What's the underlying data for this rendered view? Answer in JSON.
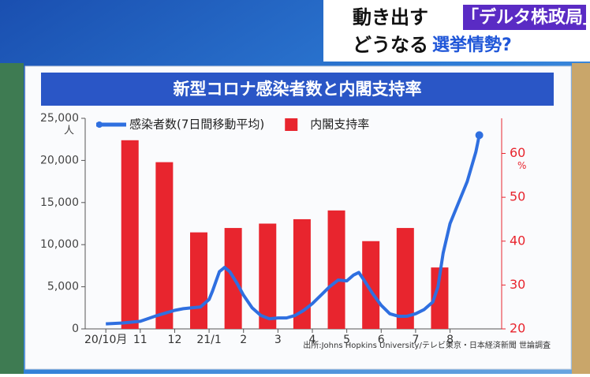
{
  "header": {
    "line1_plain": "動き出す",
    "line1_highlight": "「デルタ株政局」",
    "line2_plain": "どうなる",
    "line2_highlight": "選挙情勢?"
  },
  "chart_data": {
    "type": "bar-line",
    "title": "新型コロナ感染者数と内閣支持率",
    "y_unit": "人",
    "y2_unit": "%",
    "xlim": [
      -0.6,
      11.5
    ],
    "xticks": [
      {
        "value": 0,
        "label": "20/10月"
      },
      {
        "value": 1,
        "label": "11"
      },
      {
        "value": 2,
        "label": "12"
      },
      {
        "value": 3,
        "label": "21/1"
      },
      {
        "value": 4,
        "label": "2"
      },
      {
        "value": 5,
        "label": "3"
      },
      {
        "value": 6,
        "label": "4"
      },
      {
        "value": 7,
        "label": "5"
      },
      {
        "value": 8,
        "label": "6"
      },
      {
        "value": 9,
        "label": "7"
      },
      {
        "value": 10,
        "label": "8"
      }
    ],
    "ylim": [
      0,
      25000
    ],
    "yticks": [
      0,
      {
        "value": 5000,
        "label": "5,000"
      },
      {
        "value": 10000,
        "label": "10,000"
      },
      {
        "value": 15000,
        "label": "15,000"
      },
      {
        "value": 20000,
        "label": "20,000"
      },
      {
        "value": 25000,
        "label": "25,000"
      }
    ],
    "y2lim": [
      20,
      68
    ],
    "y2ticks": [
      20,
      30,
      40,
      50,
      60
    ],
    "series": [
      {
        "name": "感染者数(7日間移動平均)",
        "type": "line",
        "color": "#2f6fe0",
        "x": [
          0,
          0.5,
          1,
          1.5,
          2,
          2.25,
          2.5,
          2.75,
          3,
          3.1,
          3.3,
          3.45,
          3.6,
          3.8,
          4,
          4.25,
          4.5,
          4.75,
          5,
          5.25,
          5.5,
          5.75,
          6,
          6.25,
          6.5,
          6.75,
          7,
          7.2,
          7.35,
          7.5,
          7.75,
          8,
          8.25,
          8.5,
          8.75,
          9,
          9.25,
          9.5,
          9.65,
          9.8,
          10,
          10.25,
          10.5,
          10.75,
          10.85
        ],
        "values": [
          600,
          700,
          900,
          1600,
          2200,
          2400,
          2500,
          2600,
          3500,
          4500,
          6800,
          7300,
          6800,
          5500,
          4000,
          2500,
          1600,
          1200,
          1300,
          1300,
          1600,
          2200,
          3000,
          4000,
          5000,
          5800,
          5700,
          6400,
          6700,
          5800,
          4200,
          2800,
          1800,
          1500,
          1500,
          1800,
          2300,
          3200,
          5000,
          9000,
          12500,
          15000,
          17500,
          21000,
          23000
        ]
      },
      {
        "name": "内閣支持率",
        "type": "bar",
        "axis": "y2",
        "color": "#e8252e",
        "x": [
          0.7,
          1.7,
          2.7,
          3.7,
          4.7,
          5.7,
          6.7,
          7.7,
          8.7,
          9.7
        ],
        "values": [
          63,
          58,
          42,
          43,
          44,
          45,
          47,
          40,
          43,
          34
        ]
      }
    ],
    "source": "出所:Johns Hopkins University/テレビ東京・日本経済新聞 世論調査"
  }
}
